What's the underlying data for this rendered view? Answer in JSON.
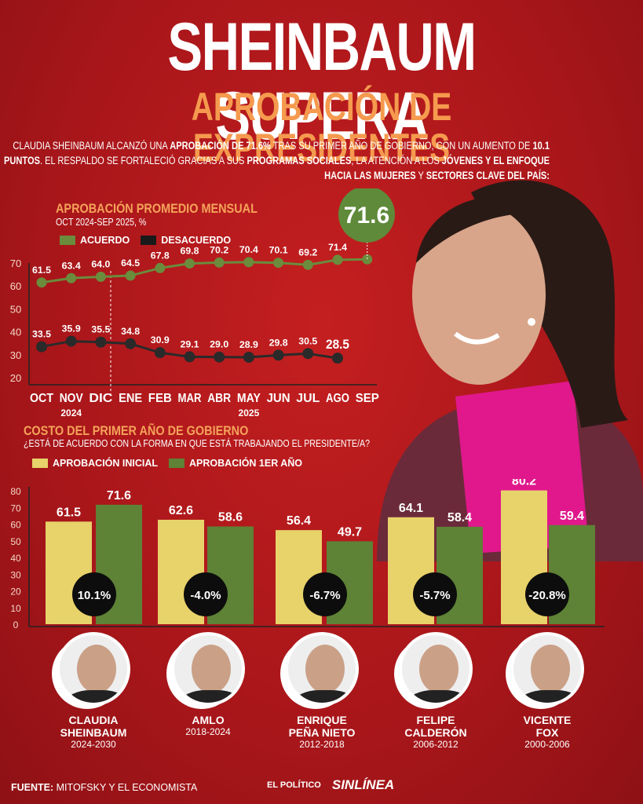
{
  "header": {
    "title": "SHEINBAUM SUPERA",
    "subtitle": "APROBACIÓN DE EXPRESIDENTES",
    "intro": [
      "CLAUDIA SHEINBAUM ALCANZÓ UNA ",
      "APROBACIÓN DE 71.6%",
      " TRAS SU PRIMER AÑO DE GOBIERNO, CON UN AUMENTO DE ",
      "10.1 PUNTOS",
      ". EL RESPALDO SE FORTALECIÓ GRACIAS A SUS ",
      "PROGRAMAS SOCIALES",
      ", LA ATENCIÓN A LOS ",
      "JÓVENES Y EL ENFOQUE HACIA LAS MUJERES",
      " Y ",
      "SECTORES CLAVE DEL PAÍS:"
    ]
  },
  "colors": {
    "background": "#b5181b",
    "acuerdo": "#6a8c3c",
    "desacuerdo": "#2a2a2a",
    "inicial": "#e8d26a",
    "primer_anio": "#5e8236",
    "accent": "#f5a35a"
  },
  "chart_data": [
    {
      "type": "line",
      "title": "APROBACIÓN PROMEDIO MENSUAL",
      "subtitle": "OCT 2024-SEP 2025, %",
      "categories": [
        "OCT",
        "NOV",
        "DIC",
        "ENE",
        "FEB",
        "MAR",
        "ABR",
        "MAY",
        "JUN",
        "JUL",
        "AGO",
        "SEP"
      ],
      "year_labels": [
        {
          "label": "2024",
          "at": "NOV"
        },
        {
          "label": "2025",
          "at": "MAY"
        }
      ],
      "yticks": [
        20,
        30,
        40,
        50,
        60,
        70
      ],
      "ylim": [
        20,
        70
      ],
      "highlight": "71.6",
      "series": [
        {
          "name": "ACUERDO",
          "color": "#6a8c3c",
          "values": [
            61.5,
            63.4,
            64.0,
            64.5,
            67.8,
            69.8,
            70.2,
            70.4,
            70.1,
            69.2,
            71.4,
            71.6
          ],
          "labels": [
            "61.5",
            "63.4",
            "64.0",
            "64.5",
            "67.8",
            "69.8",
            "70.2",
            "70.4",
            "70.1",
            "69.2",
            "71.4",
            ""
          ]
        },
        {
          "name": "DESACUERDO",
          "color": "#2a2a2a",
          "values": [
            33.5,
            35.9,
            35.5,
            34.8,
            30.9,
            29.1,
            29.0,
            28.9,
            29.8,
            30.5,
            28.5,
            null
          ],
          "labels": [
            "33.5",
            "35.9",
            "35.5",
            "34.8",
            "30.9",
            "29.1",
            "29.0",
            "28.9",
            "29.8",
            "30.5",
            "28.5",
            ""
          ]
        }
      ],
      "legend": "top-left"
    },
    {
      "type": "bar",
      "title": "COSTO DEL PRIMER AÑO DE GOBIERNO",
      "subtitle": "¿ESTÁ DE ACUERDO CON LA FORMA EN QUE ESTÁ TRABAJANDO EL PRESIDENTE/A?",
      "categories": [
        "CLAUDIA SHEINBAUM",
        "AMLO",
        "ENRIQUE PEÑA NIETO",
        "FELIPE CALDERÓN",
        "VICENTE FOX"
      ],
      "yticks": [
        0,
        10,
        20,
        30,
        40,
        50,
        60,
        70,
        80
      ],
      "ylim": [
        0,
        80
      ],
      "series": [
        {
          "name": "APROBACIÓN INICIAL",
          "color": "#e8d26a",
          "values": [
            61.5,
            62.6,
            56.4,
            64.1,
            80.2
          ],
          "labels": [
            "61.5",
            "62.6",
            "56.4",
            "64.1",
            "80.2"
          ]
        },
        {
          "name": "APROBACIÓN 1ER AÑO",
          "color": "#5e8236",
          "values": [
            71.6,
            58.6,
            49.7,
            58.4,
            59.4
          ],
          "labels": [
            "71.6",
            "58.6",
            "49.7",
            "58.4",
            "59.4"
          ]
        }
      ],
      "changes": [
        "10.1%",
        "-4.0%",
        "-6.7%",
        "-5.7%",
        "-20.8%"
      ],
      "legend": "top-left"
    }
  ],
  "presidents": [
    {
      "name1": "CLAUDIA",
      "name2": "SHEINBAUM",
      "years": "2024-2030"
    },
    {
      "name1": "AMLO",
      "name2": "",
      "years": "2018-2024"
    },
    {
      "name1": "ENRIQUE",
      "name2": "PEÑA NIETO",
      "years": "2012-2018"
    },
    {
      "name1": "FELIPE",
      "name2": "CALDERÓN",
      "years": "2006-2012"
    },
    {
      "name1": "VICENTE",
      "name2": "FOX",
      "years": "2000-2006"
    }
  ],
  "footer": {
    "source_label": "FUENTE:",
    "source": " MITOFSKY Y EL ECONOMISTA",
    "logo1": "EL POLÍTICO",
    "logo2": "SINLÍNEA"
  }
}
